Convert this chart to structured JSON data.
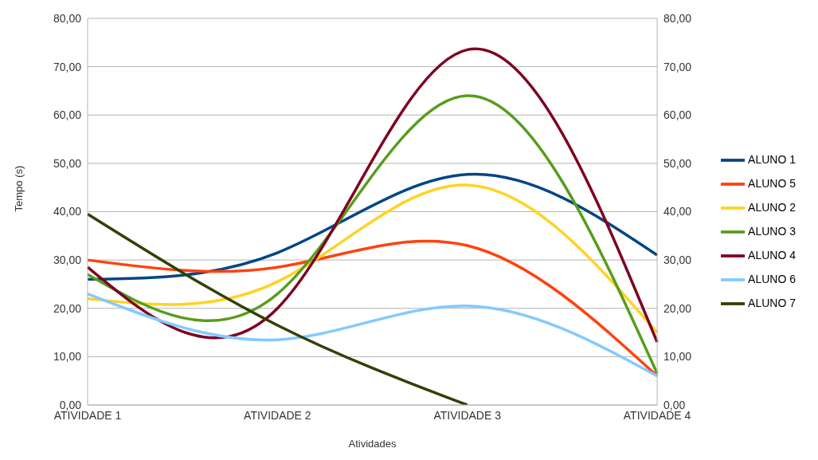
{
  "chart_data": {
    "type": "line",
    "xlabel": "Atividades",
    "ylabel": "Tempo (s)",
    "categories": [
      "ATIVIDADE 1",
      "ATIVIDADE 2",
      "ATIVIDADE 3",
      "ATIVIDADE 4"
    ],
    "series": [
      {
        "name": "ALUNO 1",
        "color": "#004586",
        "values": [
          26,
          31.5,
          47.7,
          31
        ]
      },
      {
        "name": "ALUNO 5",
        "color": "#ff420e",
        "values": [
          30,
          28.5,
          33,
          6
        ]
      },
      {
        "name": "ALUNO 2",
        "color": "#ffd320",
        "values": [
          22,
          25.5,
          45.5,
          15
        ]
      },
      {
        "name": "ALUNO 3",
        "color": "#579d1c",
        "values": [
          27,
          23,
          64,
          6.5
        ]
      },
      {
        "name": "ALUNO 4",
        "color": "#7e0021",
        "values": [
          28.5,
          20,
          73.5,
          13
        ]
      },
      {
        "name": "ALUNO 6",
        "color": "#83caff",
        "values": [
          23,
          13.5,
          20.5,
          6
        ]
      },
      {
        "name": "ALUNO 7",
        "color": "#314004",
        "values": [
          39.5,
          16.5,
          0,
          null
        ]
      }
    ],
    "ylim": [
      0,
      80
    ],
    "yticks": [
      {
        "value": 0,
        "label": "0,00"
      },
      {
        "value": 10,
        "label": "10,00"
      },
      {
        "value": 20,
        "label": "20,00"
      },
      {
        "value": 30,
        "label": "30,00"
      },
      {
        "value": 40,
        "label": "40,00"
      },
      {
        "value": 50,
        "label": "50,00"
      },
      {
        "value": 60,
        "label": "60,00"
      },
      {
        "value": 70,
        "label": "70,00"
      },
      {
        "value": 80,
        "label": "80,00"
      }
    ],
    "y2lim": [
      0,
      80
    ],
    "y2ticks": [
      {
        "value": 0,
        "label": "0,00"
      },
      {
        "value": 10,
        "label": "10,00"
      },
      {
        "value": 20,
        "label": "20,00"
      },
      {
        "value": 30,
        "label": "30,00"
      },
      {
        "value": 40,
        "label": "40,00"
      },
      {
        "value": 50,
        "label": "50,00"
      },
      {
        "value": 60,
        "label": "60,00"
      },
      {
        "value": 70,
        "label": "70,00"
      },
      {
        "value": 80,
        "label": "80,00"
      }
    ],
    "grid": "y",
    "legend": "right",
    "marker": "none",
    "line_style": "solid"
  }
}
